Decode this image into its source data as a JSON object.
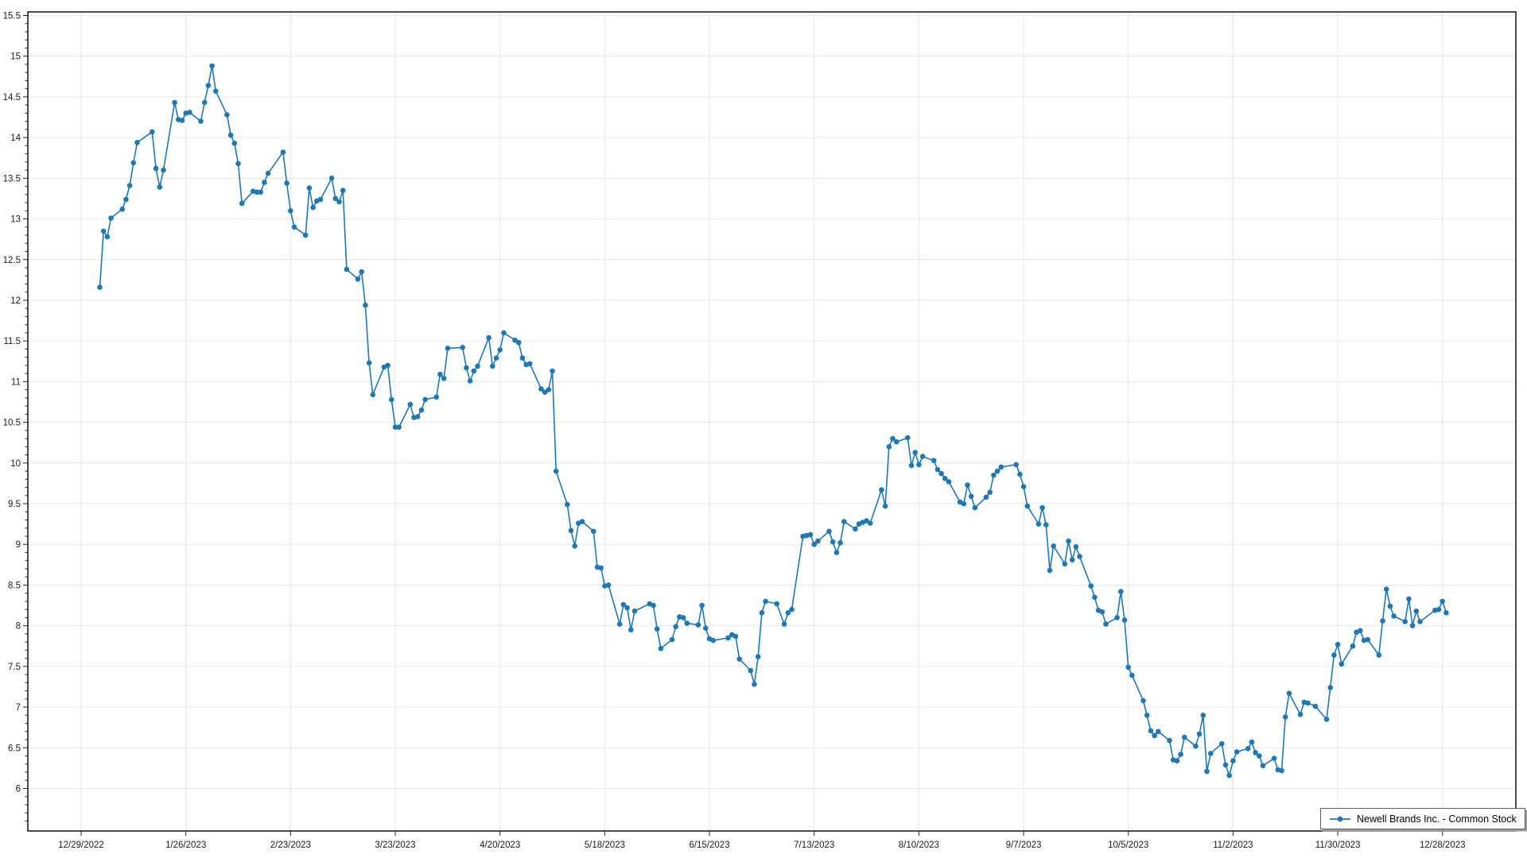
{
  "window": {
    "background": "#ffffff"
  },
  "legend": {
    "series_label": "Newell Brands Inc. - Common Stock",
    "position": "bottom-right"
  },
  "chart_data": {
    "type": "line",
    "title": "",
    "xlabel": "",
    "ylabel": "",
    "grid": true,
    "ylim": [
      5.5,
      15.55
    ],
    "y_tick_values": [
      15.5,
      15,
      14.5,
      14,
      13.5,
      13,
      12.5,
      12,
      11.5,
      11,
      10.5,
      10,
      9.5,
      9,
      8.5,
      8,
      7.5,
      7,
      6.5,
      6
    ],
    "y_tick_labels": [
      "15.5",
      "15",
      "14.5",
      "14",
      "13.5",
      "13",
      "12.5",
      "12",
      "11.5",
      "11",
      "10.5",
      "10",
      "9.5",
      "9",
      "8.5",
      "8",
      "7.5",
      "7",
      "6.5",
      "6"
    ],
    "x_tick_dates": [
      "2022-12-29",
      "2023-01-26",
      "2023-02-23",
      "2023-03-23",
      "2023-04-20",
      "2023-05-18",
      "2023-06-15",
      "2023-07-13",
      "2023-08-10",
      "2023-09-07",
      "2023-10-05",
      "2023-11-02",
      "2023-11-30",
      "2023-12-28"
    ],
    "x_tick_labels": [
      "12/29/2022",
      "1/26/2023",
      "2/23/2023",
      "3/23/2023",
      "4/20/2023",
      "5/18/2023",
      "6/15/2023",
      "7/13/2023",
      "8/10/2023",
      "9/7/2023",
      "10/5/2023",
      "11/2/2023",
      "11/30/2023",
      "12/28/2023"
    ],
    "series": [
      {
        "name": "Newell Brands Inc. - Common Stock",
        "color": "#1f77b4",
        "marker": "circle",
        "points": [
          [
            "2023-01-03",
            12.16
          ],
          [
            "2023-01-04",
            12.85
          ],
          [
            "2023-01-05",
            12.78
          ],
          [
            "2023-01-06",
            13.01
          ],
          [
            "2023-01-09",
            13.12
          ],
          [
            "2023-01-10",
            13.24
          ],
          [
            "2023-01-11",
            13.41
          ],
          [
            "2023-01-12",
            13.69
          ],
          [
            "2023-01-13",
            13.94
          ],
          [
            "2023-01-17",
            14.07
          ],
          [
            "2023-01-18",
            13.62
          ],
          [
            "2023-01-19",
            13.39
          ],
          [
            "2023-01-20",
            13.6
          ],
          [
            "2023-01-23",
            14.43
          ],
          [
            "2023-01-24",
            14.22
          ],
          [
            "2023-01-25",
            14.21
          ],
          [
            "2023-01-26",
            14.3
          ],
          [
            "2023-01-27",
            14.31
          ],
          [
            "2023-01-30",
            14.2
          ],
          [
            "2023-01-31",
            14.43
          ],
          [
            "2023-02-01",
            14.64
          ],
          [
            "2023-02-02",
            14.88
          ],
          [
            "2023-02-03",
            14.57
          ],
          [
            "2023-02-06",
            14.28
          ],
          [
            "2023-02-07",
            14.03
          ],
          [
            "2023-02-08",
            13.93
          ],
          [
            "2023-02-09",
            13.68
          ],
          [
            "2023-02-10",
            13.19
          ],
          [
            "2023-02-13",
            13.34
          ],
          [
            "2023-02-14",
            13.33
          ],
          [
            "2023-02-15",
            13.33
          ],
          [
            "2023-02-16",
            13.45
          ],
          [
            "2023-02-17",
            13.56
          ],
          [
            "2023-02-21",
            13.82
          ],
          [
            "2023-02-22",
            13.44
          ],
          [
            "2023-02-23",
            13.1
          ],
          [
            "2023-02-24",
            12.9
          ],
          [
            "2023-02-27",
            12.8
          ],
          [
            "2023-02-28",
            13.38
          ],
          [
            "2023-03-01",
            13.14
          ],
          [
            "2023-03-02",
            13.22
          ],
          [
            "2023-03-03",
            13.24
          ],
          [
            "2023-03-06",
            13.5
          ],
          [
            "2023-03-07",
            13.25
          ],
          [
            "2023-03-08",
            13.21
          ],
          [
            "2023-03-09",
            13.35
          ],
          [
            "2023-03-10",
            12.38
          ],
          [
            "2023-03-13",
            12.26
          ],
          [
            "2023-03-14",
            12.35
          ],
          [
            "2023-03-15",
            11.94
          ],
          [
            "2023-03-16",
            11.23
          ],
          [
            "2023-03-17",
            10.84
          ],
          [
            "2023-03-20",
            11.18
          ],
          [
            "2023-03-21",
            11.2
          ],
          [
            "2023-03-22",
            10.78
          ],
          [
            "2023-03-23",
            10.44
          ],
          [
            "2023-03-24",
            10.44
          ],
          [
            "2023-03-27",
            10.72
          ],
          [
            "2023-03-28",
            10.56
          ],
          [
            "2023-03-29",
            10.57
          ],
          [
            "2023-03-30",
            10.65
          ],
          [
            "2023-03-31",
            10.78
          ],
          [
            "2023-04-03",
            10.81
          ],
          [
            "2023-04-04",
            11.09
          ],
          [
            "2023-04-05",
            11.04
          ],
          [
            "2023-04-06",
            11.41
          ],
          [
            "2023-04-10",
            11.42
          ],
          [
            "2023-04-11",
            11.17
          ],
          [
            "2023-04-12",
            11.01
          ],
          [
            "2023-04-13",
            11.13
          ],
          [
            "2023-04-14",
            11.19
          ],
          [
            "2023-04-17",
            11.54
          ],
          [
            "2023-04-18",
            11.19
          ],
          [
            "2023-04-19",
            11.29
          ],
          [
            "2023-04-20",
            11.39
          ],
          [
            "2023-04-21",
            11.6
          ],
          [
            "2023-04-24",
            11.51
          ],
          [
            "2023-04-25",
            11.48
          ],
          [
            "2023-04-26",
            11.29
          ],
          [
            "2023-04-27",
            11.21
          ],
          [
            "2023-04-28",
            11.22
          ],
          [
            "2023-05-01",
            10.91
          ],
          [
            "2023-05-02",
            10.87
          ],
          [
            "2023-05-03",
            10.9
          ],
          [
            "2023-05-04",
            11.13
          ],
          [
            "2023-05-05",
            9.9
          ],
          [
            "2023-05-08",
            9.49
          ],
          [
            "2023-05-09",
            9.17
          ],
          [
            "2023-05-10",
            8.98
          ],
          [
            "2023-05-11",
            9.26
          ],
          [
            "2023-05-12",
            9.28
          ],
          [
            "2023-05-15",
            9.16
          ],
          [
            "2023-05-16",
            8.72
          ],
          [
            "2023-05-17",
            8.71
          ],
          [
            "2023-05-18",
            8.49
          ],
          [
            "2023-05-19",
            8.5
          ],
          [
            "2023-05-22",
            8.02
          ],
          [
            "2023-05-23",
            8.26
          ],
          [
            "2023-05-24",
            8.22
          ],
          [
            "2023-05-25",
            7.95
          ],
          [
            "2023-05-26",
            8.18
          ],
          [
            "2023-05-30",
            8.27
          ],
          [
            "2023-05-31",
            8.25
          ],
          [
            "2023-06-01",
            7.96
          ],
          [
            "2023-06-02",
            7.72
          ],
          [
            "2023-06-05",
            7.83
          ],
          [
            "2023-06-06",
            7.99
          ],
          [
            "2023-06-07",
            8.11
          ],
          [
            "2023-06-08",
            8.1
          ],
          [
            "2023-06-09",
            8.03
          ],
          [
            "2023-06-12",
            8.01
          ],
          [
            "2023-06-13",
            8.25
          ],
          [
            "2023-06-14",
            7.97
          ],
          [
            "2023-06-15",
            7.84
          ],
          [
            "2023-06-16",
            7.82
          ],
          [
            "2023-06-20",
            7.85
          ],
          [
            "2023-06-21",
            7.89
          ],
          [
            "2023-06-22",
            7.87
          ],
          [
            "2023-06-23",
            7.59
          ],
          [
            "2023-06-26",
            7.45
          ],
          [
            "2023-06-27",
            7.28
          ],
          [
            "2023-06-28",
            7.62
          ],
          [
            "2023-06-29",
            8.16
          ],
          [
            "2023-06-30",
            8.3
          ],
          [
            "2023-07-03",
            8.27
          ],
          [
            "2023-07-05",
            8.02
          ],
          [
            "2023-07-06",
            8.16
          ],
          [
            "2023-07-07",
            8.2
          ],
          [
            "2023-07-10",
            9.1
          ],
          [
            "2023-07-11",
            9.11
          ],
          [
            "2023-07-12",
            9.12
          ],
          [
            "2023-07-13",
            9.0
          ],
          [
            "2023-07-14",
            9.04
          ],
          [
            "2023-07-17",
            9.16
          ],
          [
            "2023-07-18",
            9.03
          ],
          [
            "2023-07-19",
            8.9
          ],
          [
            "2023-07-20",
            9.02
          ],
          [
            "2023-07-21",
            9.28
          ],
          [
            "2023-07-24",
            9.19
          ],
          [
            "2023-07-25",
            9.25
          ],
          [
            "2023-07-26",
            9.27
          ],
          [
            "2023-07-27",
            9.29
          ],
          [
            "2023-07-28",
            9.26
          ],
          [
            "2023-07-31",
            9.67
          ],
          [
            "2023-08-01",
            9.47
          ],
          [
            "2023-08-02",
            10.2
          ],
          [
            "2023-08-03",
            10.3
          ],
          [
            "2023-08-04",
            10.26
          ],
          [
            "2023-08-07",
            10.31
          ],
          [
            "2023-08-08",
            9.97
          ],
          [
            "2023-08-09",
            10.13
          ],
          [
            "2023-08-10",
            9.98
          ],
          [
            "2023-08-11",
            10.08
          ],
          [
            "2023-08-14",
            10.03
          ],
          [
            "2023-08-15",
            9.92
          ],
          [
            "2023-08-16",
            9.87
          ],
          [
            "2023-08-17",
            9.81
          ],
          [
            "2023-08-18",
            9.77
          ],
          [
            "2023-08-21",
            9.52
          ],
          [
            "2023-08-22",
            9.5
          ],
          [
            "2023-08-23",
            9.73
          ],
          [
            "2023-08-24",
            9.59
          ],
          [
            "2023-08-25",
            9.45
          ],
          [
            "2023-08-28",
            9.58
          ],
          [
            "2023-08-29",
            9.64
          ],
          [
            "2023-08-30",
            9.85
          ],
          [
            "2023-08-31",
            9.9
          ],
          [
            "2023-09-01",
            9.95
          ],
          [
            "2023-09-05",
            9.98
          ],
          [
            "2023-09-06",
            9.86
          ],
          [
            "2023-09-07",
            9.71
          ],
          [
            "2023-09-08",
            9.47
          ],
          [
            "2023-09-11",
            9.25
          ],
          [
            "2023-09-12",
            9.45
          ],
          [
            "2023-09-13",
            9.24
          ],
          [
            "2023-09-14",
            8.68
          ],
          [
            "2023-09-15",
            8.98
          ],
          [
            "2023-09-18",
            8.76
          ],
          [
            "2023-09-19",
            9.04
          ],
          [
            "2023-09-20",
            8.81
          ],
          [
            "2023-09-21",
            8.97
          ],
          [
            "2023-09-22",
            8.85
          ],
          [
            "2023-09-25",
            8.49
          ],
          [
            "2023-09-26",
            8.35
          ],
          [
            "2023-09-27",
            8.19
          ],
          [
            "2023-09-28",
            8.17
          ],
          [
            "2023-09-29",
            8.02
          ],
          [
            "2023-10-02",
            8.1
          ],
          [
            "2023-10-03",
            8.42
          ],
          [
            "2023-10-04",
            8.07
          ],
          [
            "2023-10-05",
            7.49
          ],
          [
            "2023-10-06",
            7.39
          ],
          [
            "2023-10-09",
            7.08
          ],
          [
            "2023-10-10",
            6.9
          ],
          [
            "2023-10-11",
            6.71
          ],
          [
            "2023-10-12",
            6.65
          ],
          [
            "2023-10-13",
            6.7
          ],
          [
            "2023-10-16",
            6.59
          ],
          [
            "2023-10-17",
            6.35
          ],
          [
            "2023-10-18",
            6.34
          ],
          [
            "2023-10-19",
            6.42
          ],
          [
            "2023-10-20",
            6.63
          ],
          [
            "2023-10-23",
            6.52
          ],
          [
            "2023-10-24",
            6.67
          ],
          [
            "2023-10-25",
            6.9
          ],
          [
            "2023-10-26",
            6.21
          ],
          [
            "2023-10-27",
            6.43
          ],
          [
            "2023-10-30",
            6.55
          ],
          [
            "2023-10-31",
            6.29
          ],
          [
            "2023-11-01",
            6.16
          ],
          [
            "2023-11-02",
            6.34
          ],
          [
            "2023-11-03",
            6.45
          ],
          [
            "2023-11-06",
            6.49
          ],
          [
            "2023-11-07",
            6.57
          ],
          [
            "2023-11-08",
            6.44
          ],
          [
            "2023-11-09",
            6.4
          ],
          [
            "2023-11-10",
            6.28
          ],
          [
            "2023-11-13",
            6.37
          ],
          [
            "2023-11-14",
            6.23
          ],
          [
            "2023-11-15",
            6.22
          ],
          [
            "2023-11-16",
            6.88
          ],
          [
            "2023-11-17",
            7.17
          ],
          [
            "2023-11-20",
            6.91
          ],
          [
            "2023-11-21",
            7.06
          ],
          [
            "2023-11-22",
            7.05
          ],
          [
            "2023-11-24",
            7.01
          ],
          [
            "2023-11-27",
            6.85
          ],
          [
            "2023-11-28",
            7.24
          ],
          [
            "2023-11-29",
            7.64
          ],
          [
            "2023-11-30",
            7.77
          ],
          [
            "2023-12-01",
            7.53
          ],
          [
            "2023-12-04",
            7.75
          ],
          [
            "2023-12-05",
            7.92
          ],
          [
            "2023-12-06",
            7.94
          ],
          [
            "2023-12-07",
            7.82
          ],
          [
            "2023-12-08",
            7.83
          ],
          [
            "2023-12-11",
            7.64
          ],
          [
            "2023-12-12",
            8.06
          ],
          [
            "2023-12-13",
            8.45
          ],
          [
            "2023-12-14",
            8.24
          ],
          [
            "2023-12-15",
            8.12
          ],
          [
            "2023-12-18",
            8.05
          ],
          [
            "2023-12-19",
            8.33
          ],
          [
            "2023-12-20",
            8.0
          ],
          [
            "2023-12-21",
            8.18
          ],
          [
            "2023-12-22",
            8.05
          ],
          [
            "2023-12-26",
            8.19
          ],
          [
            "2023-12-27",
            8.2
          ],
          [
            "2023-12-28",
            8.3
          ],
          [
            "2023-12-29",
            8.16
          ]
        ]
      }
    ],
    "legend_position": "bottom-right"
  }
}
